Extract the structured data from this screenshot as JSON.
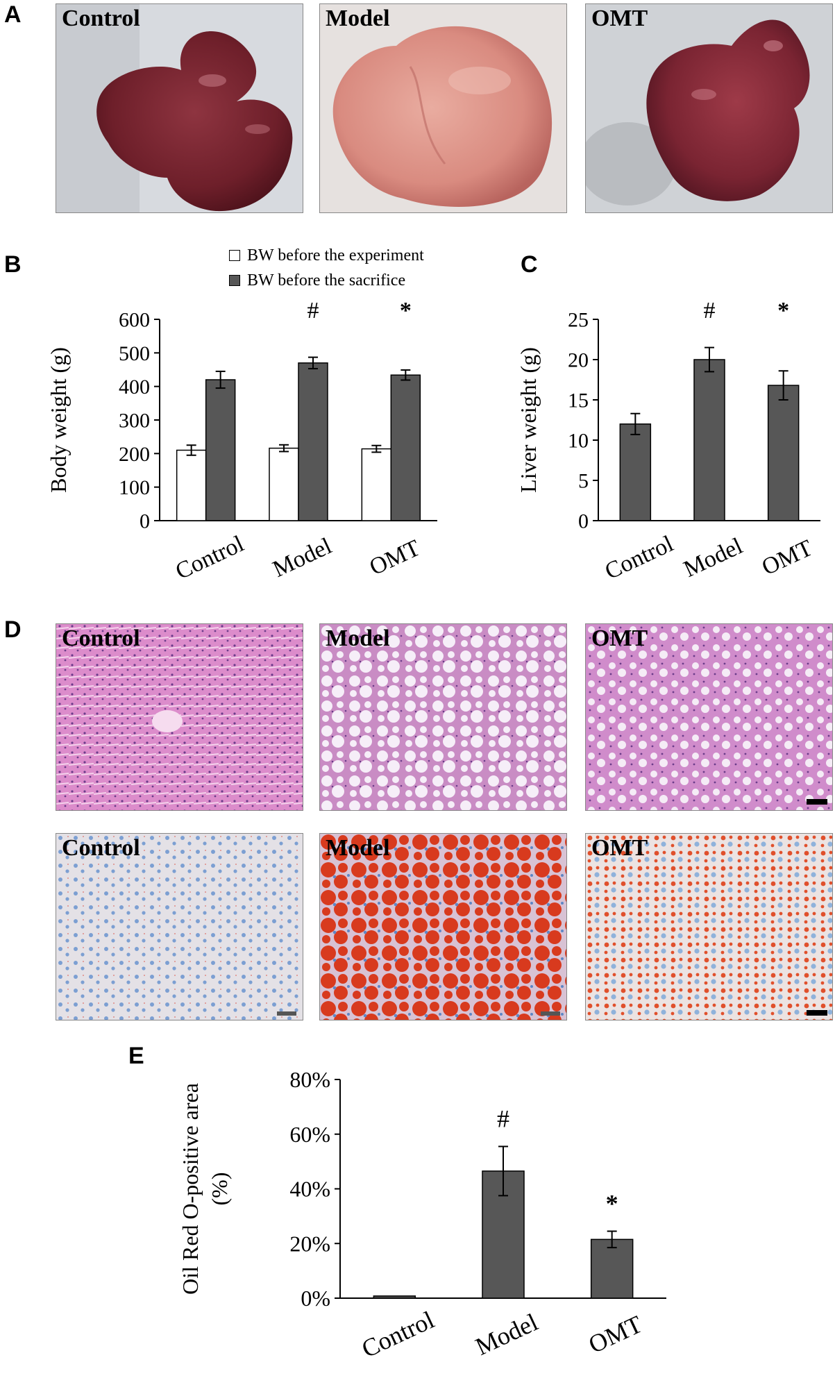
{
  "panels": {
    "a": "A",
    "b": "B",
    "c": "C",
    "d": "D",
    "e": "E"
  },
  "photos": {
    "liver": [
      "Control",
      "Model",
      "OMT"
    ],
    "he": [
      "Control",
      "Model",
      "OMT"
    ],
    "oil": [
      "Control",
      "Model",
      "OMT"
    ]
  },
  "legend_b": {
    "before": "BW before the experiment",
    "sacrifice": "BW before the sacrifice"
  },
  "colors": {
    "dark_bar": "#575757",
    "light_bar": "#ffffff",
    "liver_tissue": "#7a2630",
    "he_stain": "#d77fc3",
    "oil_red": "#d83a1e",
    "hematoxylin_blue": "#5d86c6"
  },
  "chart_data": [
    {
      "id": "B",
      "type": "bar",
      "ylabel": "Body weight (g)",
      "categories": [
        "Control",
        "Model",
        "OMT"
      ],
      "ylim": [
        0,
        600
      ],
      "yticks": [
        0,
        100,
        200,
        300,
        400,
        500,
        600
      ],
      "ytick_labels": [
        "0",
        "100",
        "200",
        "300",
        "400",
        "500",
        "600"
      ],
      "series": [
        {
          "name": "BW before the experiment",
          "values": [
            210,
            216,
            214
          ],
          "errors": [
            15,
            10,
            10
          ]
        },
        {
          "name": "BW before the sacrifice",
          "values": [
            420,
            470,
            434
          ],
          "errors": [
            25,
            17,
            15
          ]
        }
      ],
      "annotations": [
        {
          "category": "Model",
          "text": "#"
        },
        {
          "category": "OMT",
          "text": "*"
        }
      ]
    },
    {
      "id": "C",
      "type": "bar",
      "ylabel": "Liver weight (g)",
      "categories": [
        "Control",
        "Model",
        "OMT"
      ],
      "ylim": [
        0,
        25
      ],
      "yticks": [
        0,
        5,
        10,
        15,
        20,
        25
      ],
      "ytick_labels": [
        "0",
        "5",
        "10",
        "15",
        "20",
        "25"
      ],
      "series": [
        {
          "values": [
            12,
            20,
            16.8
          ],
          "errors": [
            1.3,
            1.5,
            1.8
          ]
        }
      ],
      "annotations": [
        {
          "category": "Model",
          "text": "#"
        },
        {
          "category": "OMT",
          "text": "*"
        }
      ]
    },
    {
      "id": "E",
      "type": "bar",
      "ylabel": "Oil Red O-positive area",
      "ylabel2": "(%)",
      "categories": [
        "Control",
        "Model",
        "OMT"
      ],
      "ylim": [
        0,
        80
      ],
      "yticks": [
        0,
        20,
        40,
        60,
        80
      ],
      "ytick_labels": [
        "0%",
        "20%",
        "40%",
        "60%",
        "80%"
      ],
      "series": [
        {
          "values": [
            0.8,
            46.5,
            21.5
          ],
          "errors": [
            0,
            9,
            3
          ]
        }
      ],
      "annotations": [
        {
          "category": "Model",
          "text": "#"
        },
        {
          "category": "OMT",
          "text": "*"
        }
      ]
    }
  ]
}
